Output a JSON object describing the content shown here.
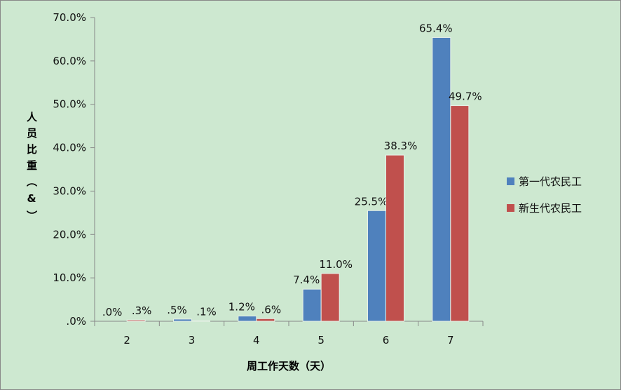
{
  "chart_data": {
    "type": "bar",
    "categories": [
      "2",
      "3",
      "4",
      "5",
      "6",
      "7"
    ],
    "series": [
      {
        "name": "第一代农民工",
        "color": "#4f81bd",
        "values": [
          0.0,
          0.5,
          1.2,
          7.4,
          25.5,
          65.4
        ],
        "labels": [
          ".0%",
          ".5%",
          "1.2%",
          "7.4%",
          "25.5%",
          "65.4%"
        ]
      },
      {
        "name": "新生代农民工",
        "color": "#c0504d",
        "values": [
          0.3,
          0.1,
          0.6,
          11.0,
          38.3,
          49.7
        ],
        "labels": [
          ".3%",
          ".1%",
          ".6%",
          "11.0%",
          "38.3%",
          "49.7%"
        ]
      }
    ],
    "xlabel": "周工作天数（天）",
    "ylabel": "人员比重（&）",
    "ylim": [
      0,
      70
    ],
    "yticks": [
      ".0%",
      "10.0%",
      "20.0%",
      "30.0%",
      "40.0%",
      "50.0%",
      "60.0%",
      "70.0%"
    ],
    "grid": false,
    "legend": "right"
  }
}
